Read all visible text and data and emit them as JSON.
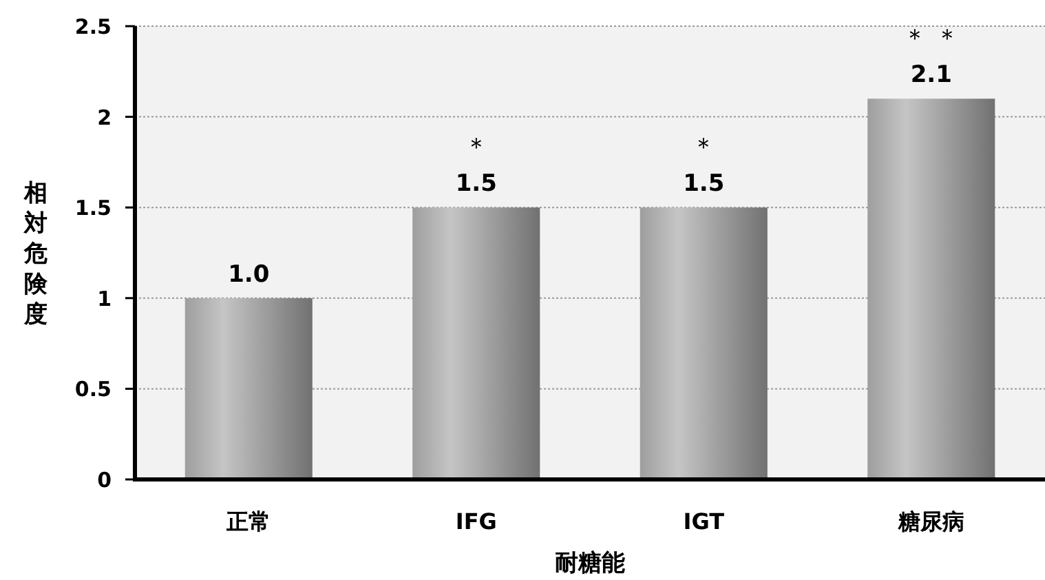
{
  "chart_data": {
    "type": "bar",
    "xlabel": "耐糖能",
    "ylabel": "相対危険度",
    "categories": [
      "正常",
      "IFG",
      "IGT",
      "糖尿病"
    ],
    "values": [
      1.0,
      1.5,
      1.5,
      2.1
    ],
    "value_labels": [
      "1.0",
      "1.5",
      "1.5",
      "2.1"
    ],
    "color": "#a6a6a6",
    "ylim": [
      0,
      2.5
    ],
    "yticks": [
      0,
      0.5,
      1,
      1.5,
      2,
      2.5
    ],
    "grid": "y",
    "annotations": [
      {
        "text": "＊",
        "x": "IFG",
        "y": 1.5
      },
      {
        "text": "＊",
        "x": "IGT",
        "y": 1.5
      },
      {
        "text": "＊ ＊",
        "x": "糖尿病",
        "y": 2.1
      }
    ]
  }
}
